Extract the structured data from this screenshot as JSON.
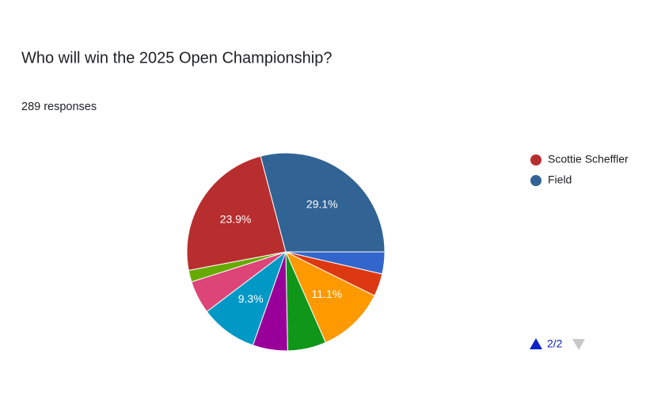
{
  "chart_data": {
    "type": "pie",
    "title": "Who will win the 2025 Open Championship?",
    "subtitle": "289 responses",
    "categories": [
      null,
      null,
      null,
      null,
      null,
      null,
      null,
      null,
      "Scottie Scheffler",
      "Field"
    ],
    "values": [
      3.6,
      3.7,
      11.1,
      6.3,
      5.7,
      9.3,
      5.4,
      1.9,
      23.9,
      29.1
    ],
    "value_labels": [
      null,
      null,
      "11.1%",
      null,
      null,
      "9.3%",
      null,
      null,
      "23.9%",
      "29.1%"
    ],
    "colors": [
      "#3366cc",
      "#dc3912",
      "#ff9900",
      "#109618",
      "#990099",
      "#0099c6",
      "#dd4477",
      "#66aa00",
      "#b82e2e",
      "#316395"
    ],
    "legend_page": "2/2"
  }
}
